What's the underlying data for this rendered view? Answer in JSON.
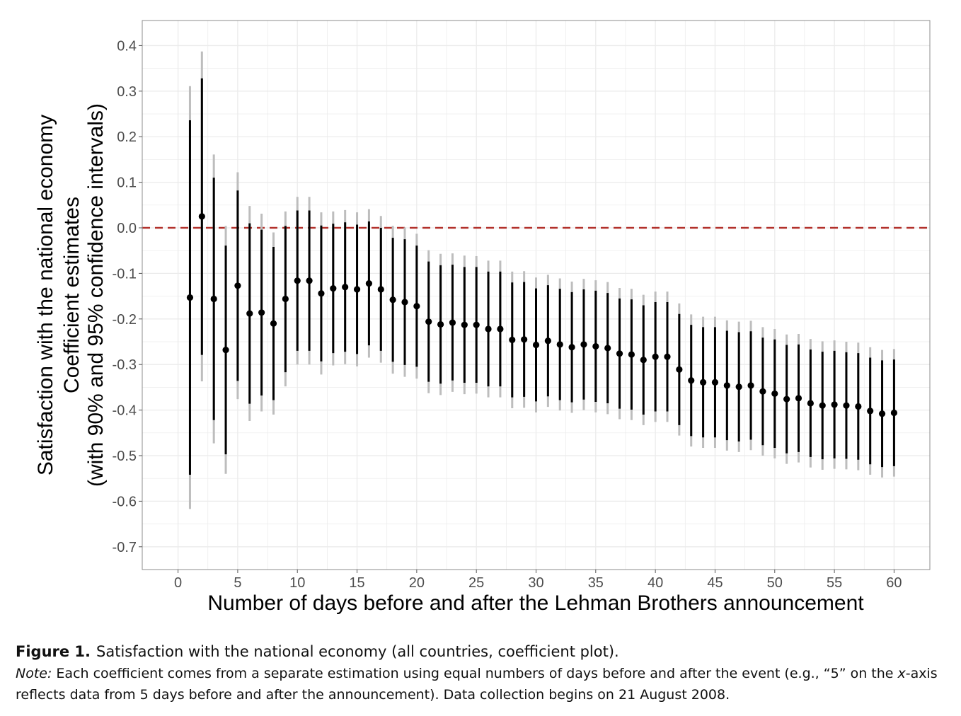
{
  "chart_data": {
    "type": "scatter",
    "xlabel": "Number of days before and after the Lehman Brothers announcement",
    "ylabel_lines": [
      "Satisfaction with the national economy",
      "Coefficient estimates",
      "(with 90% and 95% confidence intervals)"
    ],
    "xlim": [
      -3,
      63
    ],
    "ylim": [
      -0.75,
      0.455
    ],
    "x_ticks": [
      0,
      5,
      10,
      15,
      20,
      25,
      30,
      35,
      40,
      45,
      50,
      55,
      60
    ],
    "y_ticks": [
      0.4,
      0.3,
      0.2,
      0.1,
      0.0,
      -0.1,
      -0.2,
      -0.3,
      -0.4,
      -0.5,
      -0.6,
      -0.7
    ],
    "y_tick_labels": [
      "0.4",
      "0.3",
      "0.2",
      "0.1",
      "0.0",
      "-0.1",
      "-0.2",
      "-0.3",
      "-0.4",
      "-0.5",
      "-0.6",
      "-0.7"
    ],
    "grid": true,
    "reference_line": {
      "y": 0.0,
      "style": "dashed",
      "color": "#b2312b"
    },
    "colors": {
      "point": "#000000",
      "ci90": "#000000",
      "ci95": "#bdbdbd",
      "grid": "#ebebeb",
      "panel_border": "#8c8c8c"
    },
    "x": [
      1,
      2,
      3,
      4,
      5,
      6,
      7,
      8,
      9,
      10,
      11,
      12,
      13,
      14,
      15,
      16,
      17,
      18,
      19,
      20,
      21,
      22,
      23,
      24,
      25,
      26,
      27,
      28,
      29,
      30,
      31,
      32,
      33,
      34,
      35,
      36,
      37,
      38,
      39,
      40,
      41,
      42,
      43,
      44,
      45,
      46,
      47,
      48,
      49,
      50,
      51,
      52,
      53,
      54,
      55,
      56,
      57,
      58,
      59,
      60
    ],
    "estimate": [
      -0.153,
      0.025,
      -0.156,
      -0.268,
      -0.127,
      -0.188,
      -0.186,
      -0.21,
      -0.156,
      -0.116,
      -0.116,
      -0.144,
      -0.133,
      -0.13,
      -0.135,
      -0.122,
      -0.135,
      -0.158,
      -0.163,
      -0.172,
      -0.206,
      -0.212,
      -0.208,
      -0.213,
      -0.213,
      -0.222,
      -0.222,
      -0.246,
      -0.245,
      -0.257,
      -0.248,
      -0.256,
      -0.262,
      -0.256,
      -0.26,
      -0.264,
      -0.276,
      -0.278,
      -0.29,
      -0.283,
      -0.283,
      -0.311,
      -0.335,
      -0.339,
      -0.339,
      -0.346,
      -0.349,
      -0.346,
      -0.359,
      -0.364,
      -0.376,
      -0.374,
      -0.385,
      -0.39,
      -0.388,
      -0.39,
      -0.392,
      -0.402,
      -0.408,
      -0.406
    ],
    "ci90_low": [
      -0.542,
      -0.279,
      -0.422,
      -0.497,
      -0.336,
      -0.386,
      -0.368,
      -0.378,
      -0.317,
      -0.27,
      -0.27,
      -0.293,
      -0.275,
      -0.272,
      -0.277,
      -0.258,
      -0.27,
      -0.294,
      -0.301,
      -0.305,
      -0.338,
      -0.342,
      -0.335,
      -0.34,
      -0.34,
      -0.348,
      -0.348,
      -0.372,
      -0.371,
      -0.381,
      -0.37,
      -0.378,
      -0.383,
      -0.377,
      -0.382,
      -0.385,
      -0.397,
      -0.399,
      -0.41,
      -0.403,
      -0.403,
      -0.433,
      -0.457,
      -0.46,
      -0.46,
      -0.466,
      -0.469,
      -0.465,
      -0.477,
      -0.483,
      -0.495,
      -0.492,
      -0.503,
      -0.508,
      -0.506,
      -0.507,
      -0.509,
      -0.519,
      -0.525,
      -0.523
    ],
    "ci90_high": [
      0.236,
      0.328,
      0.11,
      -0.039,
      0.082,
      0.01,
      -0.004,
      -0.042,
      0.004,
      0.038,
      0.038,
      0.005,
      0.009,
      0.012,
      0.007,
      0.014,
      0.0,
      -0.022,
      -0.025,
      -0.039,
      -0.074,
      -0.082,
      -0.081,
      -0.086,
      -0.086,
      -0.096,
      -0.096,
      -0.12,
      -0.119,
      -0.133,
      -0.126,
      -0.134,
      -0.141,
      -0.135,
      -0.138,
      -0.143,
      -0.155,
      -0.157,
      -0.17,
      -0.163,
      -0.163,
      -0.189,
      -0.213,
      -0.218,
      -0.218,
      -0.226,
      -0.229,
      -0.227,
      -0.241,
      -0.245,
      -0.257,
      -0.256,
      -0.267,
      -0.272,
      -0.27,
      -0.273,
      -0.275,
      -0.285,
      -0.291,
      -0.289
    ],
    "ci95_low": [
      -0.617,
      -0.337,
      -0.473,
      -0.54,
      -0.376,
      -0.424,
      -0.403,
      -0.41,
      -0.348,
      -0.3,
      -0.3,
      -0.322,
      -0.302,
      -0.299,
      -0.304,
      -0.285,
      -0.296,
      -0.32,
      -0.327,
      -0.331,
      -0.363,
      -0.367,
      -0.36,
      -0.365,
      -0.364,
      -0.372,
      -0.372,
      -0.396,
      -0.395,
      -0.405,
      -0.393,
      -0.401,
      -0.406,
      -0.4,
      -0.405,
      -0.409,
      -0.42,
      -0.422,
      -0.433,
      -0.426,
      -0.426,
      -0.456,
      -0.48,
      -0.483,
      -0.483,
      -0.489,
      -0.492,
      -0.488,
      -0.5,
      -0.506,
      -0.518,
      -0.515,
      -0.526,
      -0.531,
      -0.529,
      -0.53,
      -0.532,
      -0.542,
      -0.548,
      -0.546
    ],
    "ci95_high": [
      0.311,
      0.387,
      0.161,
      0.004,
      0.122,
      0.048,
      0.031,
      -0.01,
      0.036,
      0.068,
      0.068,
      0.034,
      0.036,
      0.039,
      0.034,
      0.041,
      0.026,
      0.004,
      0.001,
      -0.013,
      -0.049,
      -0.057,
      -0.056,
      -0.061,
      -0.062,
      -0.072,
      -0.072,
      -0.096,
      -0.095,
      -0.109,
      -0.103,
      -0.111,
      -0.118,
      -0.112,
      -0.115,
      -0.119,
      -0.132,
      -0.134,
      -0.147,
      -0.14,
      -0.14,
      -0.166,
      -0.19,
      -0.195,
      -0.195,
      -0.203,
      -0.206,
      -0.204,
      -0.218,
      -0.222,
      -0.234,
      -0.233,
      -0.244,
      -0.249,
      -0.247,
      -0.25,
      -0.252,
      -0.262,
      -0.268,
      -0.266
    ]
  },
  "caption": {
    "label": "Figure 1.",
    "title": "Satisfaction with the national economy (all countries, coefficient plot).",
    "note_label": "Note:",
    "note_part1": " Each coefficient comes from a separate estimation using equal numbers of days before and after the event (e.g., “5” on the ",
    "note_axis": "x",
    "note_part2": "-axis reflects data from 5 days before and after the announcement). Data collection begins on 21 August 2008."
  }
}
